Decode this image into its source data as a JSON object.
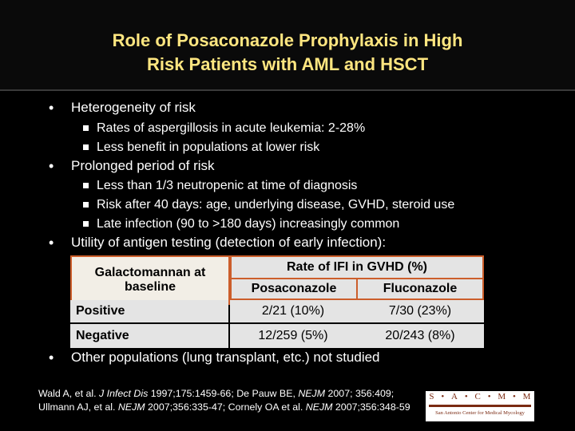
{
  "slide": {
    "title_line1": "Role of Posaconazole Prophylaxis in High",
    "title_line2": "Risk Patients with AML and HSCT"
  },
  "bullets": [
    {
      "text": "Heterogeneity of risk",
      "subs": [
        "Rates of aspergillosis in acute leukemia:  2-28%",
        "Less benefit in populations at lower risk"
      ]
    },
    {
      "text": "Prolonged period of risk",
      "subs": [
        "Less than 1/3 neutropenic at time of diagnosis",
        "Risk after 40 days:  age, underlying disease, GVHD, steroid use",
        "Late infection (90 to >180 days) increasingly common"
      ]
    },
    {
      "text": "Utility of antigen testing (detection of early infection):",
      "subs": []
    },
    {
      "text": "Other populations (lung transplant, etc.) not studied",
      "subs": []
    }
  ],
  "table": {
    "corner_line1": "Galactomannan at",
    "corner_line2": "baseline",
    "group_header": "Rate of IFI in GVHD (%)",
    "col1": "Posaconazole",
    "col2": "Fluconazole",
    "rows": [
      {
        "label": "Positive",
        "v1": "2/21 (10%)",
        "v2": "7/30 (23%)"
      },
      {
        "label": "Negative",
        "v1": "12/259 (5%)",
        "v2": "20/243 (8%)"
      }
    ]
  },
  "footer": {
    "p1": "Wald A, et al. ",
    "p2": "J Infect Dis",
    "p3": " 1997;175:1459-66;  De Pauw BE, ",
    "p4": "NEJM",
    "p5": "  2007; 356:409; Ullmann AJ, et al. ",
    "p6": "NEJM",
    "p7": " 2007;356:335-47; Cornely OA et al. ",
    "p8": "NEJM",
    "p9": " 2007;356:348-59"
  },
  "logo": {
    "letters": [
      "S",
      "•",
      "A",
      "•",
      "C",
      "•",
      "M",
      "•",
      "M"
    ],
    "subtitle": "San Antonio Center for Medical Mycology"
  },
  "colors": {
    "background": "#000000",
    "title": "#ffe680",
    "text": "#ffffff",
    "table_border": "#cc5e2b",
    "table_fill": "#e4e4e4"
  }
}
